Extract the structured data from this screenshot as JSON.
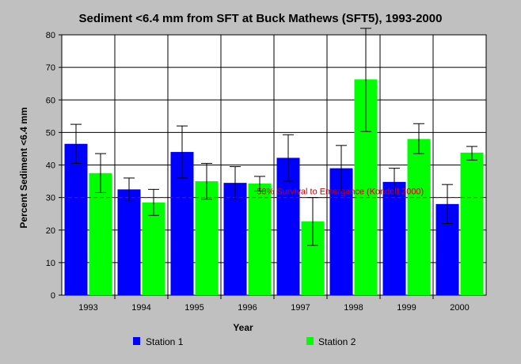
{
  "chart_data": {
    "type": "bar",
    "title": "Sediment <6.4 mm from SFT at Buck Mathews (SFT5), 1993-2000",
    "xlabel": "Year",
    "ylabel": "Percent Sediment <6.4 mm",
    "ylim": [
      0,
      80
    ],
    "yticks": [
      "0",
      "10",
      "20",
      "30",
      "40",
      "50",
      "60",
      "70",
      "80"
    ],
    "categories": [
      "1993",
      "1994",
      "1995",
      "1996",
      "1997",
      "1998",
      "1999",
      "2000"
    ],
    "series": [
      {
        "name": "Station 1",
        "color": "#0000ff",
        "values": [
          46.5,
          32.5,
          44,
          34.5,
          42.2,
          39,
          34.8,
          28
        ],
        "error_low": [
          40.5,
          29,
          36,
          29.5,
          35,
          32,
          30.5,
          22
        ],
        "error_high": [
          52.5,
          36,
          52,
          39.5,
          49.3,
          46,
          39,
          34
        ]
      },
      {
        "name": "Station 2",
        "color": "#00ff00",
        "values": [
          37.5,
          28.5,
          35,
          34.3,
          22.7,
          66.3,
          48,
          43.8
        ],
        "error_low": [
          31.5,
          24.5,
          29.5,
          32,
          15.3,
          50.3,
          43.5,
          41.5
        ],
        "error_high": [
          43.5,
          32.5,
          40.5,
          36.5,
          30,
          82,
          52.7,
          45.7
        ]
      }
    ],
    "reference_line": {
      "value": 30,
      "label": "50% Survival to Emergence (Kondolf 2000)",
      "color": "#cc0000"
    },
    "grid": true,
    "legend": "bottom"
  },
  "colors": {
    "background": "#c0c0c0",
    "plot_background": "#ffffff"
  }
}
